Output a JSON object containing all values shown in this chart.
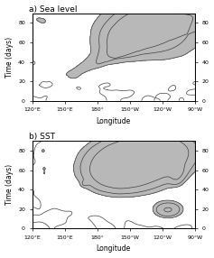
{
  "title_a": "a) Sea level",
  "title_b": "b) SST",
  "xlabel": "Longitude",
  "ylabel": "Time (days)",
  "xlim_deg": [
    120,
    270
  ],
  "ylim": [
    0,
    90
  ],
  "xticks_deg": [
    120,
    150,
    180,
    210,
    240,
    270
  ],
  "xticklabels": [
    "120°E",
    "150°E",
    "180°",
    "150°W",
    "120°W",
    "90°W"
  ],
  "yticks": [
    0,
    20,
    40,
    60,
    80
  ],
  "background_color": "#ffffff",
  "contour_color": "#404040",
  "shade_color": "#b8b8b8",
  "figsize": [
    2.37,
    2.86
  ],
  "dpi": 100
}
